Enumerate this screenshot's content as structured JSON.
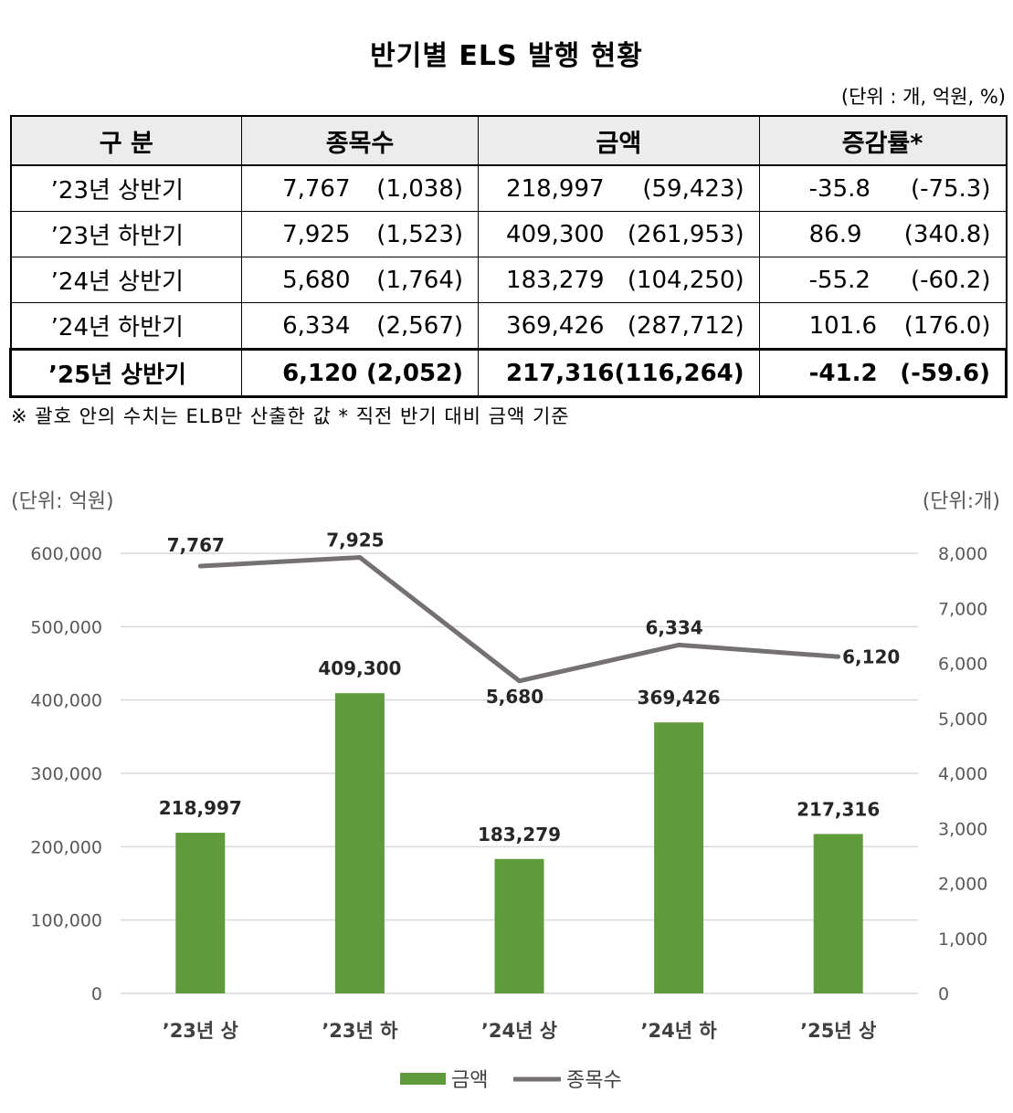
{
  "title": "반기별 ELS 발행 현황",
  "unit_note": "(단위 : 개, 억원, %)",
  "table": {
    "headers": [
      "구 분",
      "종목수",
      "금액",
      "증감률*"
    ],
    "rows": [
      {
        "period": "’23년 상반기",
        "count": "7,767",
        "count_elb": "(1,038)",
        "amount": "218,997",
        "amount_elb": "(59,423)",
        "rate": "-35.8",
        "rate_elb": "(-75.3)"
      },
      {
        "period": "’23년 하반기",
        "count": "7,925",
        "count_elb": "(1,523)",
        "amount": "409,300",
        "amount_elb": "(261,953)",
        "rate": "86.9",
        "rate_elb": "(340.8)"
      },
      {
        "period": "’24년 상반기",
        "count": "5,680",
        "count_elb": "(1,764)",
        "amount": "183,279",
        "amount_elb": "(104,250)",
        "rate": "-55.2",
        "rate_elb": "(-60.2)"
      },
      {
        "period": "’24년 하반기",
        "count": "6,334",
        "count_elb": "(2,567)",
        "amount": "369,426",
        "amount_elb": "(287,712)",
        "rate": "101.6",
        "rate_elb": "(176.0)"
      },
      {
        "period": "’25년 상반기",
        "count": "6,120",
        "count_elb": "(2,052)",
        "amount": "217,316",
        "amount_elb": "(116,264)",
        "rate": "-41.2",
        "rate_elb": "(-59.6)"
      }
    ]
  },
  "footnote": "※ 괄호 안의 수치는 ELB만 산출한 값 * 직전 반기 대비 금액 기준",
  "chart_data": {
    "type": "bar",
    "categories": [
      "’23년 상",
      "’23년 하",
      "’24년 상",
      "’24년 하",
      "’25년 상"
    ],
    "left_unit": "(단위: 억원)",
    "right_unit": "(단위:개)",
    "left_ylim": [
      0,
      600000
    ],
    "left_ticks": [
      "0",
      "100,000",
      "200,000",
      "300,000",
      "400,000",
      "500,000",
      "600,000"
    ],
    "right_ylim": [
      0,
      8000
    ],
    "right_ticks": [
      "0",
      "1,000",
      "2,000",
      "3,000",
      "4,000",
      "5,000",
      "6,000",
      "7,000",
      "8,000"
    ],
    "series": [
      {
        "name": "금액",
        "type": "bar",
        "axis": "left",
        "color": "#5f9a3b",
        "values": [
          218997,
          409300,
          183279,
          369426,
          217316
        ],
        "labels": [
          "218,997",
          "409,300",
          "183,279",
          "369,426",
          "217,316"
        ]
      },
      {
        "name": "종목수",
        "type": "line",
        "axis": "right",
        "color": "#757171",
        "values": [
          7767,
          7925,
          5680,
          6334,
          6120
        ],
        "labels": [
          "7,767",
          "7,925",
          "5,680",
          "6,334",
          "6,120"
        ]
      }
    ],
    "grid": true,
    "legend": "bottom"
  }
}
